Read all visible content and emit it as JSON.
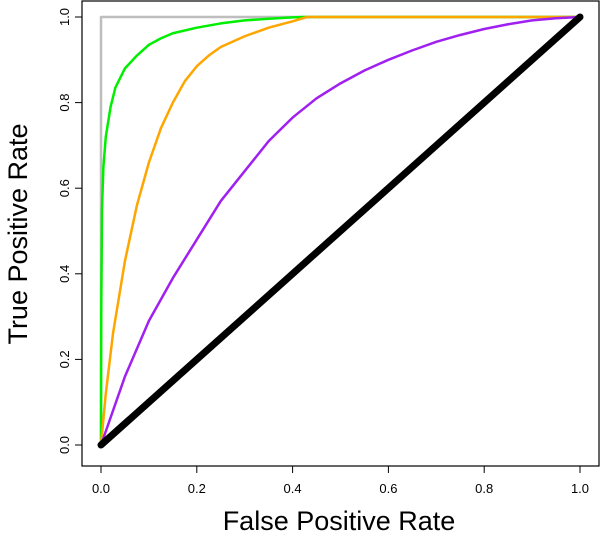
{
  "chart_data": {
    "type": "line",
    "title": "",
    "xlabel": "False Positive Rate",
    "ylabel": "True Positive Rate",
    "xlim": [
      0,
      1
    ],
    "ylim": [
      0,
      1
    ],
    "x_ticks": [
      "0.0",
      "0.2",
      "0.4",
      "0.6",
      "0.8",
      "1.0"
    ],
    "y_ticks": [
      "0.0",
      "0.2",
      "0.4",
      "0.6",
      "0.8",
      "1.0"
    ],
    "grid": false,
    "legend": "none",
    "series": [
      {
        "color": "#bebebe",
        "x": [
          0,
          0,
          1
        ],
        "y": [
          0,
          1,
          1
        ]
      },
      {
        "color": "#00ee00",
        "x": [
          0,
          0.0005,
          0.002,
          0.005,
          0.01,
          0.02,
          0.03,
          0.05,
          0.075,
          0.1,
          0.125,
          0.15,
          0.2,
          0.25,
          0.3,
          0.35,
          0.4,
          0.42,
          1
        ],
        "y": [
          0,
          0.3,
          0.55,
          0.65,
          0.72,
          0.79,
          0.835,
          0.88,
          0.91,
          0.935,
          0.95,
          0.962,
          0.975,
          0.985,
          0.992,
          0.996,
          0.999,
          1,
          1
        ]
      },
      {
        "color": "#ffa500",
        "x": [
          0,
          0.01,
          0.025,
          0.05,
          0.075,
          0.1,
          0.125,
          0.15,
          0.175,
          0.2,
          0.225,
          0.25,
          0.3,
          0.35,
          0.4,
          0.43,
          1
        ],
        "y": [
          0,
          0.12,
          0.26,
          0.43,
          0.56,
          0.66,
          0.74,
          0.8,
          0.85,
          0.885,
          0.91,
          0.93,
          0.955,
          0.975,
          0.99,
          1,
          1
        ]
      },
      {
        "color": "#a020f0",
        "x": [
          0,
          0.05,
          0.1,
          0.15,
          0.2,
          0.25,
          0.3,
          0.35,
          0.4,
          0.45,
          0.5,
          0.55,
          0.6,
          0.65,
          0.7,
          0.75,
          0.8,
          0.85,
          0.9,
          0.95,
          1
        ],
        "y": [
          0,
          0.16,
          0.29,
          0.39,
          0.48,
          0.57,
          0.64,
          0.71,
          0.765,
          0.81,
          0.845,
          0.875,
          0.9,
          0.922,
          0.942,
          0.958,
          0.972,
          0.983,
          0.992,
          0.997,
          1
        ]
      },
      {
        "color": "#000000",
        "x": [
          0,
          1
        ],
        "y": [
          0,
          1
        ]
      }
    ]
  }
}
